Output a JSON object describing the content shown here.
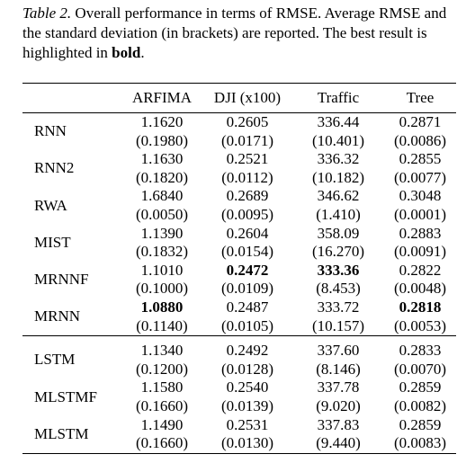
{
  "caption": {
    "label": "Table 2.",
    "text": "Overall performance in terms of RMSE. Average RMSE and the standard deviation (in brackets) are reported. The best result is highlighted in ",
    "bold_word": "bold",
    "end": "."
  },
  "table": {
    "columns": [
      "ARFIMA",
      "DJI (x100)",
      "Traffic",
      "Tree"
    ],
    "groups": [
      [
        {
          "name": "RNN",
          "cells": [
            {
              "mean": "1.1620",
              "std": "(0.1980)"
            },
            {
              "mean": "0.2605",
              "std": "(0.0171)"
            },
            {
              "mean": "336.44",
              "std": "(10.401)"
            },
            {
              "mean": "0.2871",
              "std": "(0.0086)"
            }
          ]
        },
        {
          "name": "RNN2",
          "cells": [
            {
              "mean": "1.1630",
              "std": "(0.1820)"
            },
            {
              "mean": "0.2521",
              "std": "(0.0112)"
            },
            {
              "mean": "336.32",
              "std": "(10.182)"
            },
            {
              "mean": "0.2855",
              "std": "(0.0077)"
            }
          ]
        },
        {
          "name": "RWA",
          "cells": [
            {
              "mean": "1.6840",
              "std": "(0.0050)"
            },
            {
              "mean": "0.2689",
              "std": "(0.0095)"
            },
            {
              "mean": "346.62",
              "std": "(1.410)"
            },
            {
              "mean": "0.3048",
              "std": "(0.0001)"
            }
          ]
        },
        {
          "name": "MIST",
          "cells": [
            {
              "mean": "1.1390",
              "std": "(0.1832)"
            },
            {
              "mean": "0.2604",
              "std": "(0.0154)"
            },
            {
              "mean": "358.09",
              "std": "(16.270)"
            },
            {
              "mean": "0.2883",
              "std": "(0.0091)"
            }
          ]
        },
        {
          "name": "MRNNF",
          "cells": [
            {
              "mean": "1.1010",
              "std": "(0.1000)"
            },
            {
              "mean": "0.2472",
              "std": "(0.0109)",
              "bold": true
            },
            {
              "mean": "333.36",
              "std": "(8.453)",
              "bold": true
            },
            {
              "mean": "0.2822",
              "std": "(0.0048)"
            }
          ]
        },
        {
          "name": "MRNN",
          "cells": [
            {
              "mean": "1.0880",
              "std": "(0.1140)",
              "bold": true
            },
            {
              "mean": "0.2487",
              "std": "(0.0105)"
            },
            {
              "mean": "333.72",
              "std": "(10.157)"
            },
            {
              "mean": "0.2818",
              "std": "(0.0053)",
              "bold": true
            }
          ]
        }
      ],
      [
        {
          "name": "LSTM",
          "cells": [
            {
              "mean": "1.1340",
              "std": "(0.1200)"
            },
            {
              "mean": "0.2492",
              "std": "(0.0128)"
            },
            {
              "mean": "337.60",
              "std": "(8.146)"
            },
            {
              "mean": "0.2833",
              "std": "(0.0070)"
            }
          ]
        },
        {
          "name": "MLSTMF",
          "cells": [
            {
              "mean": "1.1580",
              "std": "(0.1660)"
            },
            {
              "mean": "0.2540",
              "std": "(0.0139)"
            },
            {
              "mean": "337.78",
              "std": "(9.020)"
            },
            {
              "mean": "0.2859",
              "std": "(0.0082)"
            }
          ]
        },
        {
          "name": "MLSTM",
          "cells": [
            {
              "mean": "1.1490",
              "std": "(0.1660)"
            },
            {
              "mean": "0.2531",
              "std": "(0.0130)"
            },
            {
              "mean": "337.83",
              "std": "(9.440)"
            },
            {
              "mean": "0.2859",
              "std": "(0.0083)"
            }
          ]
        }
      ]
    ]
  }
}
